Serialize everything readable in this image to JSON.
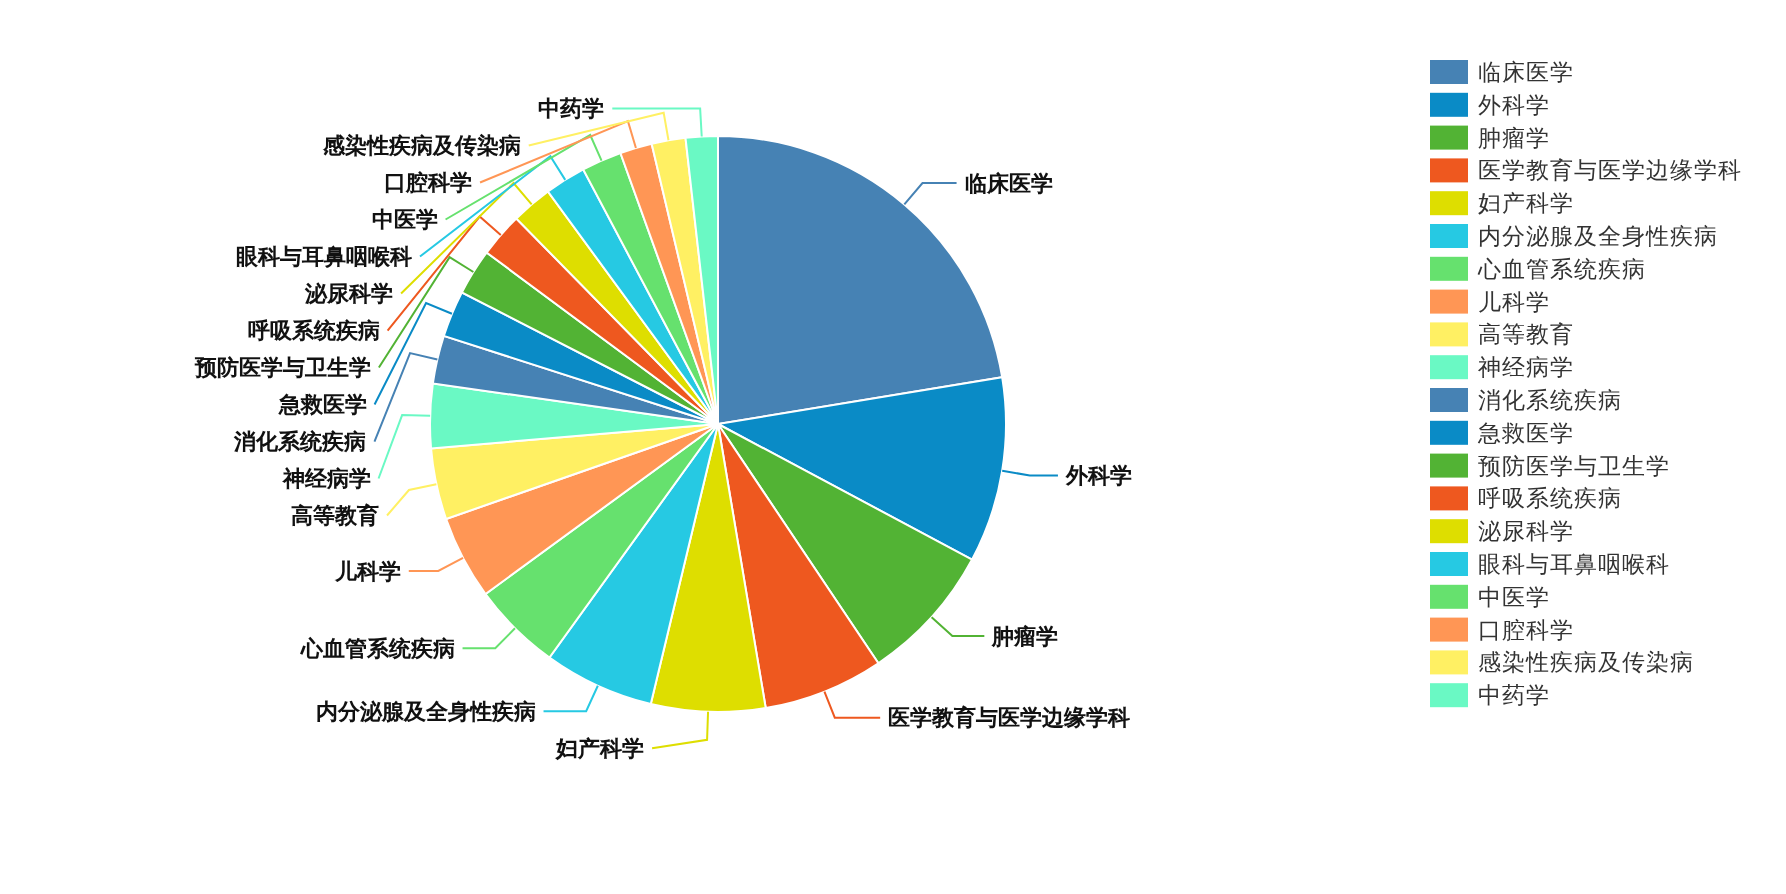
{
  "chart_data": {
    "type": "pie",
    "categories": [
      "临床医学",
      "外科学",
      "肿瘤学",
      "医学教育与医学边缘学科",
      "妇产科学",
      "内分泌腺及全身性疾病",
      "心血管系统疾病",
      "儿科学",
      "高等教育",
      "神经病学",
      "消化系统疾病",
      "急救医学",
      "预防医学与卫生学",
      "呼吸系统疾病",
      "泌尿科学",
      "眼科与耳鼻咽喉科",
      "中医学",
      "口腔科学",
      "感染性疾病及传染病",
      "中药学"
    ],
    "values": [
      22.4,
      10.4,
      7.8,
      6.75,
      6.4,
      6.2,
      5.0,
      4.7,
      4.0,
      3.6,
      2.7,
      2.6,
      2.6,
      2.5,
      2.3,
      2.3,
      2.25,
      1.8,
      1.9,
      1.8
    ],
    "colors": [
      "#4682b4",
      "#0a8bc6",
      "#52b334",
      "#ee581f",
      "#dede00",
      "#26c9e3",
      "#66e16e",
      "#ff9655",
      "#fff063",
      "#6af9c4",
      "#4682b4",
      "#0a8bc6",
      "#52b334",
      "#ee581f",
      "#dede00",
      "#26c9e3",
      "#66e16e",
      "#ff9655",
      "#fff063",
      "#6af9c4"
    ],
    "legend": "top right"
  }
}
